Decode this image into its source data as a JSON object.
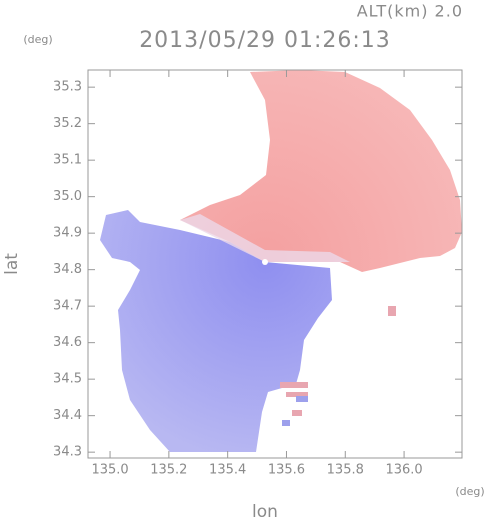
{
  "chart_data": {
    "type": "map",
    "title": "2013/05/29 01:26:13",
    "subtitle": "ALT(km) 2.0",
    "y_unit": "(deg)",
    "x_unit": "(deg)",
    "xlabel": "lon",
    "ylabel": "lat",
    "xlim": [
      134.925,
      136.197
    ],
    "ylim": [
      34.284,
      35.347
    ],
    "xticks": [
      {
        "value": 135,
        "label": "135.0"
      },
      135.2,
      135.4,
      135.6,
      135.8,
      {
        "value": 136,
        "label": "136.0"
      }
    ],
    "yticks": [
      34.3,
      34.4,
      34.5,
      34.6,
      34.7,
      34.8,
      34.9,
      {
        "value": 35,
        "label": "35.0"
      },
      35.1,
      35.2,
      35.3
    ]
  }
}
